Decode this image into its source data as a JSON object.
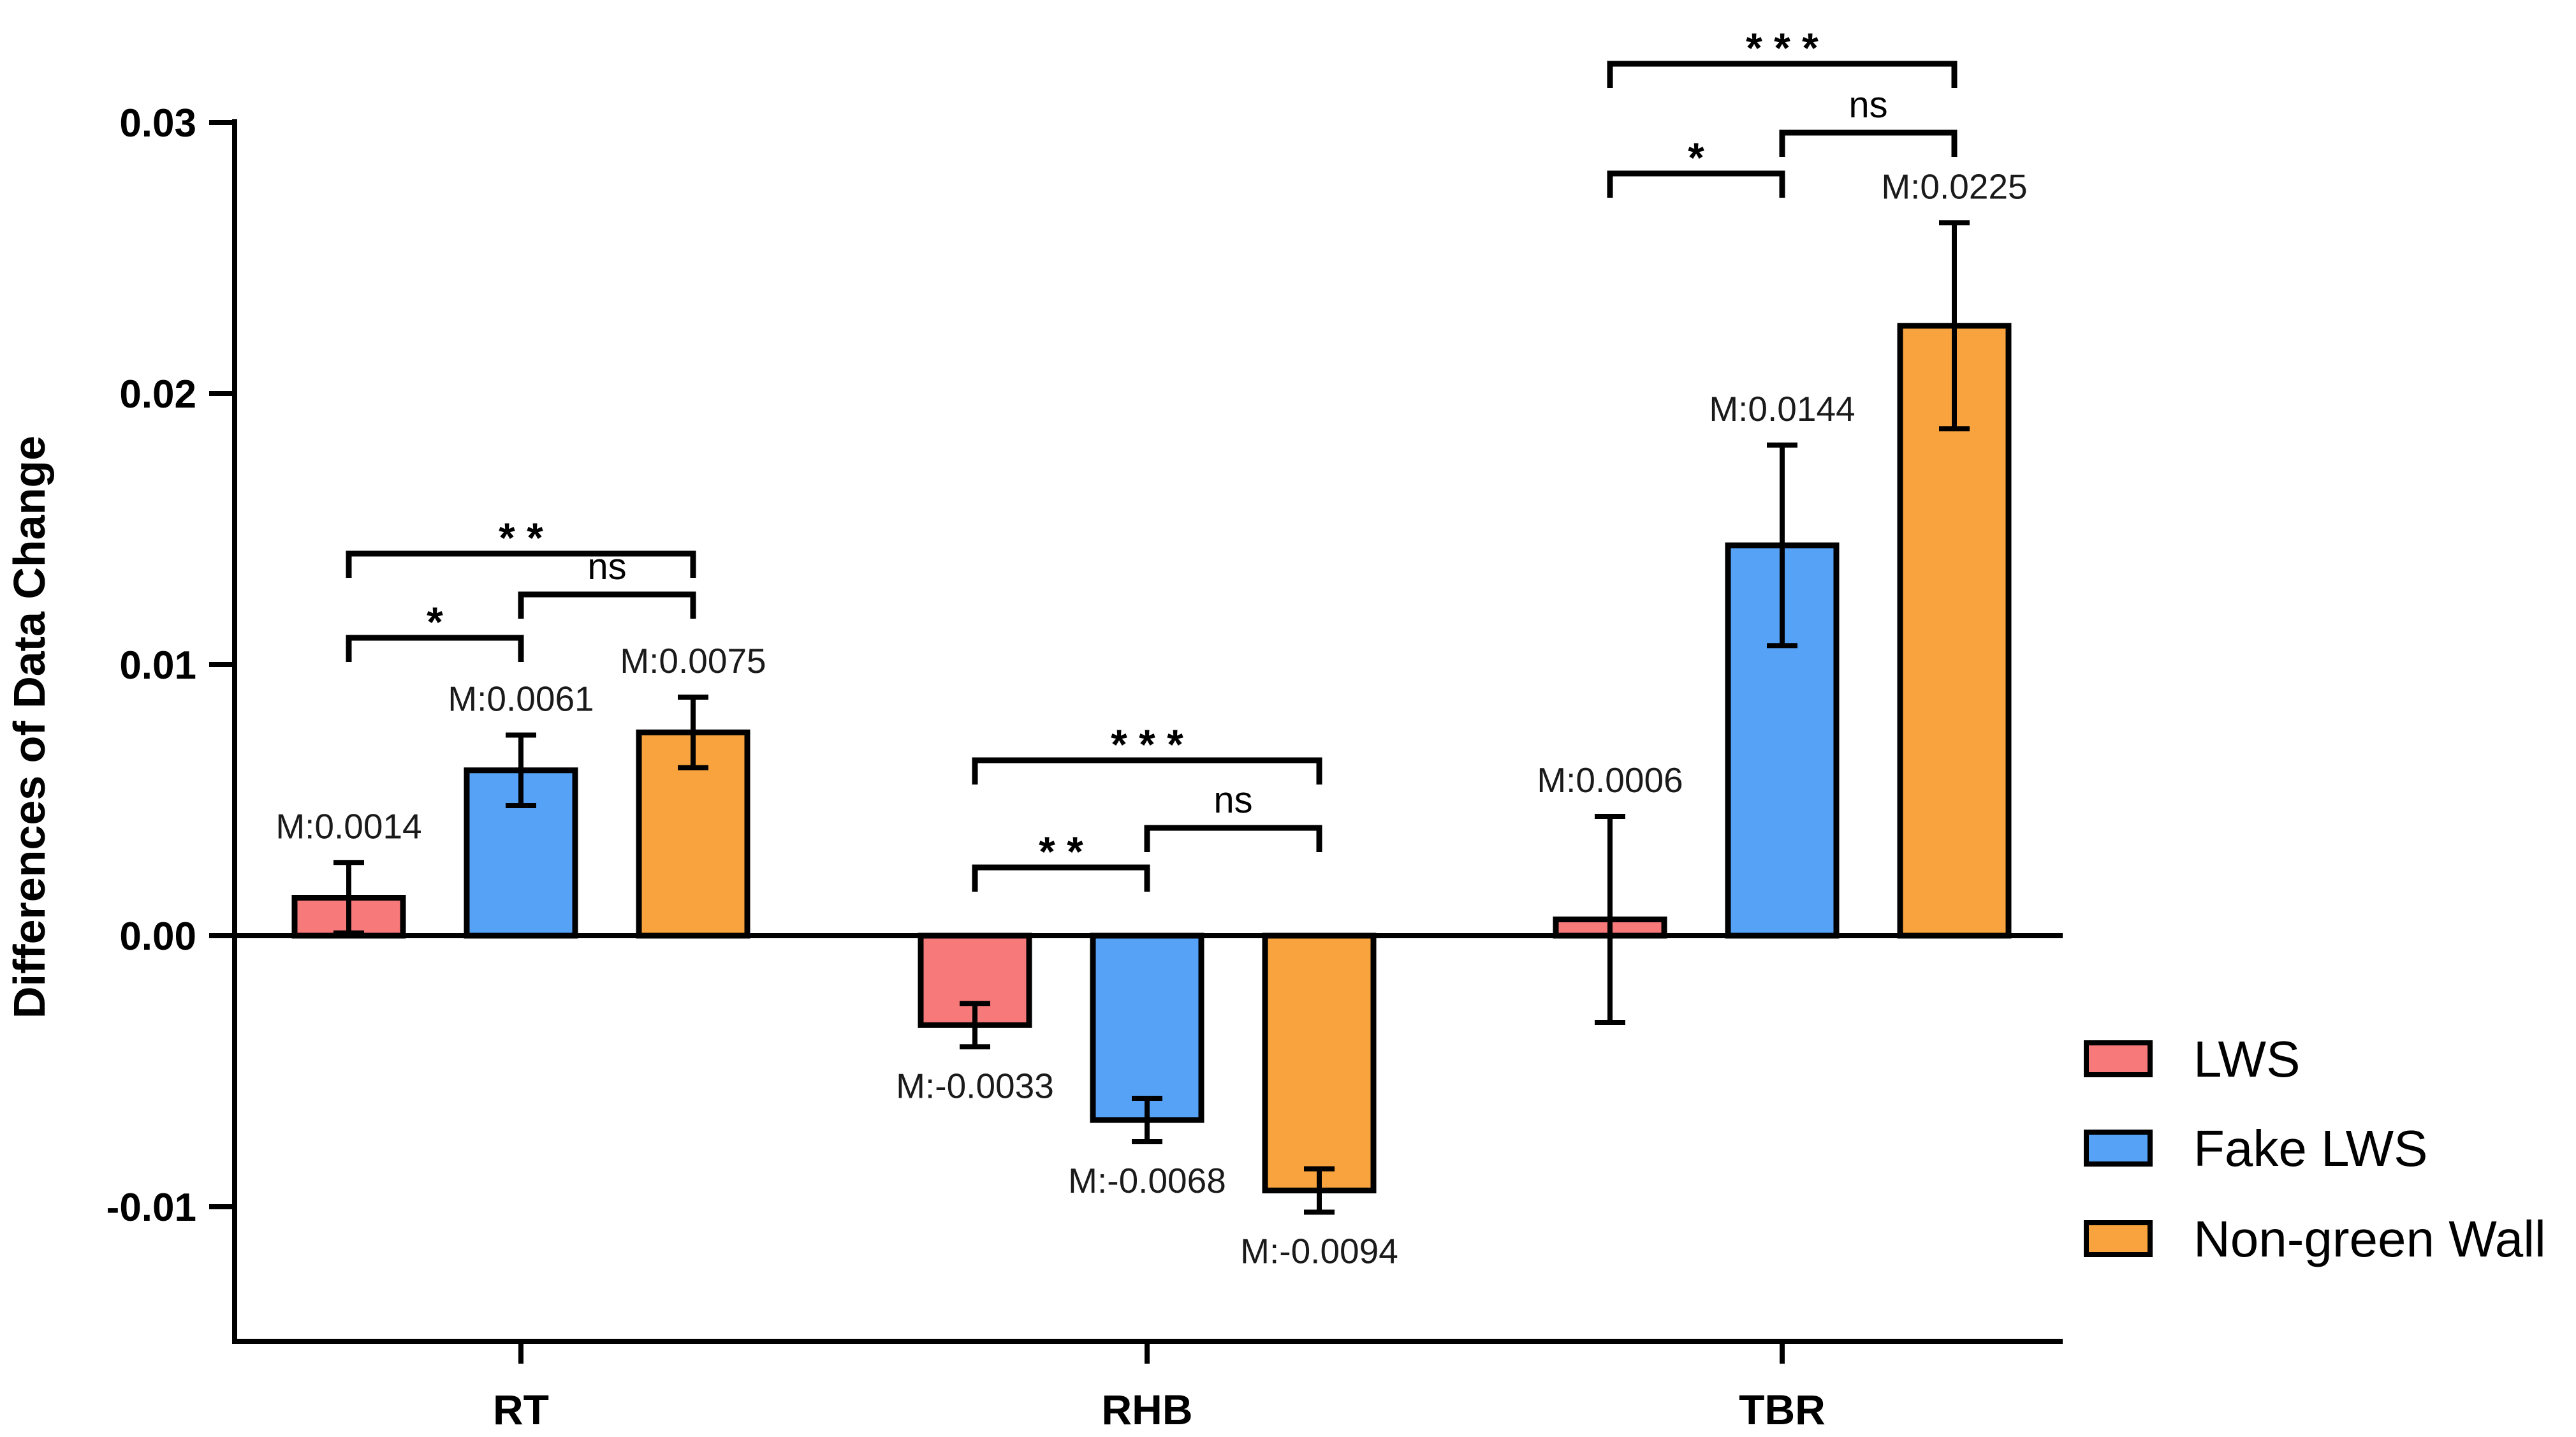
{
  "chart_data": {
    "type": "bar",
    "title": "",
    "xlabel": "",
    "ylabel": "Differences of Data Change",
    "ylim": [
      -0.015,
      0.03
    ],
    "yticks": [
      -0.01,
      0.0,
      0.01,
      0.02,
      0.03
    ],
    "ytick_labels": [
      "-0.01",
      "0.00",
      "0.01",
      "0.02",
      "0.03"
    ],
    "categories": [
      "RT",
      "RHB",
      "TBR"
    ],
    "series": [
      {
        "name": "LWS",
        "color": "#f7797a",
        "values": [
          0.0014,
          -0.0033,
          0.0006
        ],
        "errors": [
          0.0013,
          0.0008,
          0.0038
        ],
        "labels": [
          "M:0.0014",
          "M:-0.0033",
          "M:0.0006"
        ]
      },
      {
        "name": "Fake LWS",
        "color": "#55a2f7",
        "values": [
          0.0061,
          -0.0068,
          0.0144
        ],
        "errors": [
          0.0013,
          0.0008,
          0.0037
        ],
        "labels": [
          "M:0.0061",
          "M:-0.0068",
          "M:0.0144"
        ]
      },
      {
        "name": "Non-green Wall",
        "color": "#f8a33d",
        "values": [
          0.0075,
          -0.0094,
          0.0225
        ],
        "errors": [
          0.0013,
          0.0008,
          0.0038
        ],
        "labels": [
          "M:0.0075",
          "M:-0.0094",
          "M:0.0225"
        ]
      }
    ],
    "significance": [
      {
        "category": "RT",
        "from": 0,
        "to": 1,
        "label": "*",
        "level": 1
      },
      {
        "category": "RT",
        "from": 1,
        "to": 2,
        "label": "ns",
        "level": 1
      },
      {
        "category": "RT",
        "from": 0,
        "to": 2,
        "label": "* *",
        "level": 2
      },
      {
        "category": "RHB",
        "from": 0,
        "to": 1,
        "label": "* *",
        "level": 1
      },
      {
        "category": "RHB",
        "from": 1,
        "to": 2,
        "label": "ns",
        "level": 1
      },
      {
        "category": "RHB",
        "from": 0,
        "to": 2,
        "label": "* * *",
        "level": 2
      },
      {
        "category": "TBR",
        "from": 0,
        "to": 1,
        "label": "*",
        "level": 1
      },
      {
        "category": "TBR",
        "from": 1,
        "to": 2,
        "label": "ns",
        "level": 1
      },
      {
        "category": "TBR",
        "from": 0,
        "to": 2,
        "label": "* * *",
        "level": 2
      }
    ],
    "legend": {
      "position": "bottom-right",
      "entries": [
        "LWS",
        "Fake LWS",
        "Non-green Wall"
      ]
    }
  }
}
